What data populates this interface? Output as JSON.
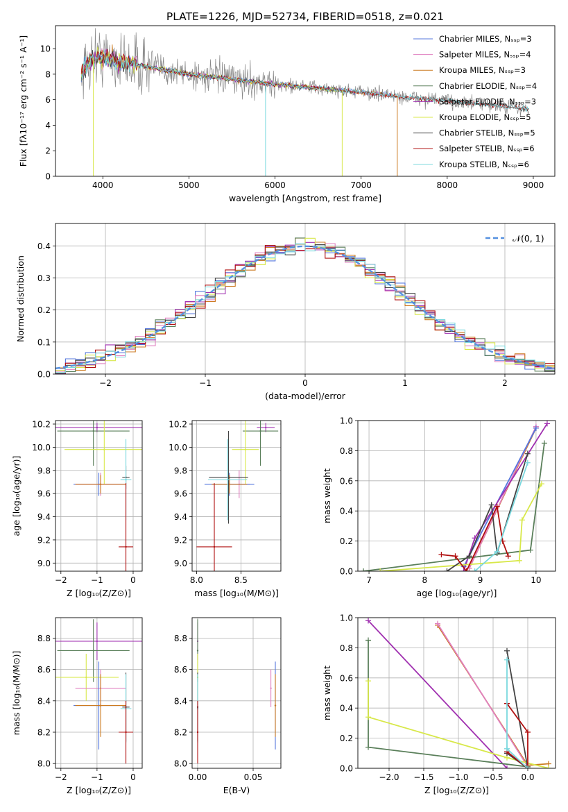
{
  "figure_title": "PLATE=1226, MJD=52734, FIBERID=0518, z=0.021",
  "colors": {
    "Chabrier MILES": "#5577dd",
    "Salpeter MILES": "#e080c0",
    "Kroupa MILES": "#cc7a20",
    "Chabrier ELODIE": "#5a7f5a",
    "Salpeter ELODIE": "#a030b0",
    "Kroupa ELODIE": "#d8e84a",
    "Chabrier STELIB": "#444444",
    "Salpeter STELIB": "#b01010",
    "Kroupa STELIB": "#7ad8de",
    "data": "#888888",
    "normal": "#5590e0"
  },
  "chart_data": [
    {
      "id": "spectrum",
      "type": "line",
      "title": "",
      "xlabel": "wavelength [Angstrom, rest frame]",
      "ylabel": "Flux [fλ10⁻¹⁷ erg cm⁻² s⁻¹ A⁻¹]",
      "xlim": [
        3450,
        9250
      ],
      "ylim": [
        0,
        11.8
      ],
      "xticks": [
        4000,
        5000,
        6000,
        7000,
        8000,
        9000
      ],
      "yticks": [
        0,
        2,
        4,
        6,
        8,
        10
      ],
      "legend_position": "top-right",
      "grid": false,
      "continuum": [
        [
          3750,
          8.2
        ],
        [
          3900,
          9.4
        ],
        [
          4000,
          9.3
        ],
        [
          4200,
          9.0
        ],
        [
          4500,
          8.6
        ],
        [
          5000,
          8.0
        ],
        [
          5500,
          7.6
        ],
        [
          6000,
          7.2
        ],
        [
          6500,
          6.9
        ],
        [
          7000,
          6.6
        ],
        [
          7500,
          6.2
        ],
        [
          8000,
          5.9
        ],
        [
          8500,
          5.6
        ],
        [
          9000,
          5.2
        ]
      ],
      "data_range": [
        3750,
        8950
      ],
      "series": [
        {
          "name": "Chabrier MILES, N_SSP=3",
          "model": "Chabrier MILES",
          "range": [
            3750,
            7420
          ]
        },
        {
          "name": "Salpeter MILES, N_SSP=4",
          "model": "Salpeter MILES",
          "range": [
            3750,
            7420
          ]
        },
        {
          "name": "Kroupa MILES, N_SSP=3",
          "model": "Kroupa MILES",
          "range": [
            3750,
            7420
          ]
        },
        {
          "name": "Chabrier ELODIE, N_SSP=4",
          "model": "Chabrier ELODIE",
          "range": [
            3750,
            6780
          ]
        },
        {
          "name": "Salpeter ELODIE, N_SSP=3",
          "model": "Salpeter ELODIE",
          "range": [
            3750,
            6780
          ]
        },
        {
          "name": "Kroupa ELODIE, N_SSP=5",
          "model": "Kroupa ELODIE",
          "range": [
            3750,
            6780
          ]
        },
        {
          "name": "Chabrier STELIB, N_SSP=5",
          "model": "Chabrier STELIB",
          "range": [
            3750,
            8950
          ]
        },
        {
          "name": "Salpeter STELIB, N_SSP=6",
          "model": "Salpeter STELIB",
          "range": [
            3750,
            8950
          ]
        },
        {
          "name": "Kroupa STELIB, N_SSP=6",
          "model": "Kroupa STELIB",
          "range": [
            3750,
            8950
          ]
        }
      ],
      "drops": [
        {
          "x": 3890,
          "model": "Kroupa ELODIE"
        },
        {
          "x": 5890,
          "model": "Kroupa STELIB"
        },
        {
          "x": 6780,
          "model": "Kroupa ELODIE"
        },
        {
          "x": 7420,
          "model": "Kroupa MILES"
        }
      ]
    },
    {
      "id": "residual_hist",
      "type": "line",
      "title": "",
      "xlabel": "(data-model)/error",
      "ylabel": "Normed distribution",
      "xlim": [
        -2.5,
        2.5
      ],
      "ylim": [
        0,
        0.47
      ],
      "xticks": [
        -2,
        -1,
        0,
        1,
        2
      ],
      "yticks": [
        0.0,
        0.1,
        0.2,
        0.3,
        0.4
      ],
      "grid": true,
      "legend_position": "top-right",
      "bin_width": 0.1,
      "normal_label": "𝒩(0, 1)"
    },
    {
      "id": "age_vs_Z",
      "type": "scatter",
      "title": "",
      "xlabel": "Z [log₁₀(Z/Z⊙)]",
      "ylabel": "age  [log₁₀(age/yr)]",
      "xlim": [
        -2.15,
        0.25
      ],
      "ylim": [
        8.93,
        10.23
      ],
      "xticks": [
        -2,
        -1,
        0
      ],
      "yticks": [
        9.0,
        9.2,
        9.4,
        9.6,
        9.8,
        10.0,
        10.2
      ],
      "grid": true,
      "points": [
        {
          "model": "Salpeter ELODIE",
          "x": -1.0,
          "xerr": 1.3,
          "y": 10.17,
          "yerr": 0.04
        },
        {
          "model": "Chabrier ELODIE",
          "x": -1.1,
          "xerr": 1.0,
          "y": 10.14,
          "yerr": 0.3
        },
        {
          "model": "Kroupa ELODIE",
          "x": -0.8,
          "xerr": 1.1,
          "y": 9.98,
          "yerr": 0.3
        },
        {
          "model": "Chabrier MILES",
          "x": -0.95,
          "xerr": 0.7,
          "y": 9.68,
          "yerr": 0.1
        },
        {
          "model": "Salpeter MILES",
          "x": -0.9,
          "xerr": 0.7,
          "y": 9.68,
          "yerr": 0.1
        },
        {
          "model": "Kroupa MILES",
          "x": -0.9,
          "xerr": 0.7,
          "y": 9.68,
          "yerr": 0.08
        },
        {
          "model": "Chabrier STELIB",
          "x": -0.2,
          "xerr": 0.1,
          "y": 9.74,
          "yerr": 0.1
        },
        {
          "model": "Kroupa STELIB",
          "x": -0.2,
          "xerr": 0.15,
          "y": 9.72,
          "yerr": 0.35
        },
        {
          "model": "Salpeter STELIB",
          "x": -0.2,
          "xerr": 0.2,
          "y": 9.14,
          "yerr": 0.55
        }
      ]
    },
    {
      "id": "age_vs_mass",
      "type": "scatter",
      "title": "",
      "xlabel": "mass [log₁₀(M/M⊙)]",
      "ylabel": "",
      "xlim": [
        7.95,
        8.95
      ],
      "ylim": [
        8.93,
        10.23
      ],
      "xticks": [
        8.0,
        8.5
      ],
      "yticks": [
        9.0,
        9.2,
        9.4,
        9.6,
        9.8,
        10.0,
        10.2
      ],
      "grid": true,
      "points": [
        {
          "model": "Salpeter ELODIE",
          "x": 8.78,
          "xerr": 0.1,
          "y": 10.17,
          "yerr": 0.04
        },
        {
          "model": "Chabrier ELODIE",
          "x": 8.72,
          "xerr": 0.2,
          "y": 10.14,
          "yerr": 0.3
        },
        {
          "model": "Kroupa ELODIE",
          "x": 8.55,
          "xerr": 0.15,
          "y": 9.98,
          "yerr": 0.3
        },
        {
          "model": "Salpeter MILES",
          "x": 8.48,
          "xerr": 0.12,
          "y": 9.68,
          "yerr": 0.12
        },
        {
          "model": "Chabrier MILES",
          "x": 8.37,
          "xerr": 0.28,
          "y": 9.68,
          "yerr": 0.1
        },
        {
          "model": "Kroupa MILES",
          "x": 8.37,
          "xerr": 0.2,
          "y": 9.68,
          "yerr": 0.08
        },
        {
          "model": "Chabrier STELIB",
          "x": 8.36,
          "xerr": 0.22,
          "y": 9.74,
          "yerr": 0.4
        },
        {
          "model": "Kroupa STELIB",
          "x": 8.35,
          "xerr": 0.22,
          "y": 9.72,
          "yerr": 0.35
        },
        {
          "model": "Salpeter STELIB",
          "x": 8.2,
          "xerr": 0.2,
          "y": 9.14,
          "yerr": 0.55
        }
      ]
    },
    {
      "id": "mass_vs_Z",
      "type": "scatter",
      "title": "",
      "xlabel": "Z [log₁₀(Z/Z⊙)]",
      "ylabel": "mass [log₁₀(M/M⊙)]",
      "xlim": [
        -2.15,
        0.25
      ],
      "ylim": [
        7.97,
        8.93
      ],
      "xticks": [
        -2,
        -1,
        0
      ],
      "yticks": [
        8.0,
        8.2,
        8.4,
        8.6,
        8.8
      ],
      "grid": true,
      "points": [
        {
          "model": "Salpeter ELODIE",
          "x": -1.0,
          "xerr": 1.3,
          "y": 8.78,
          "yerr": 0.12
        },
        {
          "model": "Chabrier ELODIE",
          "x": -1.1,
          "xerr": 1.0,
          "y": 8.72,
          "yerr": 0.2
        },
        {
          "model": "Kroupa ELODIE",
          "x": -1.3,
          "xerr": 0.9,
          "y": 8.55,
          "yerr": 0.15
        },
        {
          "model": "Salpeter MILES",
          "x": -0.9,
          "xerr": 0.7,
          "y": 8.48,
          "yerr": 0.12
        },
        {
          "model": "Chabrier MILES",
          "x": -0.95,
          "xerr": 0.7,
          "y": 8.37,
          "yerr": 0.28
        },
        {
          "model": "Kroupa MILES",
          "x": -0.9,
          "xerr": 0.7,
          "y": 8.37,
          "yerr": 0.2
        },
        {
          "model": "Chabrier STELIB",
          "x": -0.2,
          "xerr": 0.1,
          "y": 8.36,
          "yerr": 0.22
        },
        {
          "model": "Kroupa STELIB",
          "x": -0.2,
          "xerr": 0.15,
          "y": 8.35,
          "yerr": 0.22
        },
        {
          "model": "Salpeter STELIB",
          "x": -0.2,
          "xerr": 0.2,
          "y": 8.2,
          "yerr": 0.2
        }
      ]
    },
    {
      "id": "mass_vs_ebv",
      "type": "scatter",
      "title": "",
      "xlabel": "E(B-V)",
      "ylabel": "",
      "xlim": [
        -0.005,
        0.075
      ],
      "ylim": [
        7.97,
        8.93
      ],
      "xticks": [
        0.0,
        0.05
      ],
      "yticks": [
        8.0,
        8.2,
        8.4,
        8.6,
        8.8
      ],
      "grid": true,
      "points": [
        {
          "model": "Salpeter ELODIE",
          "x": 0.0,
          "y": 8.78,
          "yerr": 0.12
        },
        {
          "model": "Chabrier ELODIE",
          "x": 0.0,
          "y": 8.72,
          "yerr": 0.2
        },
        {
          "model": "Kroupa ELODIE",
          "x": 0.0,
          "y": 8.55,
          "yerr": 0.15
        },
        {
          "model": "Chabrier STELIB",
          "x": 0.0,
          "y": 8.36,
          "yerr": 0.22
        },
        {
          "model": "Kroupa STELIB",
          "x": 0.0,
          "y": 8.35,
          "yerr": 0.22
        },
        {
          "model": "Salpeter STELIB",
          "x": 0.0,
          "y": 8.2,
          "yerr": 0.2
        },
        {
          "model": "Salpeter MILES",
          "x": 0.066,
          "y": 8.48,
          "yerr": 0.12
        },
        {
          "model": "Chabrier MILES",
          "x": 0.07,
          "y": 8.37,
          "yerr": 0.28
        },
        {
          "model": "Kroupa MILES",
          "x": 0.07,
          "y": 8.37,
          "yerr": 0.2
        }
      ]
    },
    {
      "id": "weight_vs_age",
      "type": "line",
      "title": "",
      "xlabel": "age  [log₁₀(age/yr)]",
      "ylabel": "mass weight",
      "xlim": [
        6.8,
        10.35
      ],
      "ylim": [
        0,
        1.0
      ],
      "xticks": [
        7,
        8,
        9,
        10
      ],
      "yticks": [
        0.0,
        0.2,
        0.4,
        0.6,
        0.8,
        1.0
      ],
      "grid": true,
      "series": [
        {
          "model": "Kroupa MILES",
          "points": [
            [
              8.8,
              0.02
            ],
            [
              10.0,
              0.95
            ]
          ]
        },
        {
          "model": "Salpeter MILES",
          "points": [
            [
              8.8,
              0.02
            ],
            [
              10.0,
              0.96
            ]
          ]
        },
        {
          "model": "Chabrier MILES",
          "points": [
            [
              8.7,
              0.03
            ],
            [
              10.0,
              0.95
            ]
          ]
        },
        {
          "model": "Salpeter ELODIE",
          "points": [
            [
              8.7,
              0.0
            ],
            [
              8.9,
              0.22
            ],
            [
              10.2,
              0.98
            ]
          ]
        },
        {
          "model": "Chabrier ELODIE",
          "points": [
            [
              6.9,
              0.0
            ],
            [
              9.9,
              0.14
            ],
            [
              10.15,
              0.85
            ]
          ]
        },
        {
          "model": "Kroupa ELODIE",
          "points": [
            [
              7.2,
              0.0
            ],
            [
              9.7,
              0.07
            ],
            [
              9.75,
              0.34
            ],
            [
              10.1,
              0.58
            ]
          ]
        },
        {
          "model": "Chabrier STELIB",
          "points": [
            [
              8.4,
              0.0
            ],
            [
              8.8,
              0.1
            ],
            [
              9.2,
              0.44
            ],
            [
              9.3,
              0.12
            ],
            [
              9.85,
              0.78
            ]
          ]
        },
        {
          "model": "Salpeter STELIB",
          "points": [
            [
              8.3,
              0.11
            ],
            [
              8.55,
              0.1
            ],
            [
              8.75,
              0.0
            ],
            [
              9.3,
              0.43
            ],
            [
              9.4,
              0.2
            ],
            [
              9.5,
              0.1
            ]
          ]
        },
        {
          "model": "Kroupa STELIB",
          "points": [
            [
              8.9,
              0.0
            ],
            [
              9.3,
              0.13
            ],
            [
              9.85,
              0.72
            ]
          ]
        }
      ]
    },
    {
      "id": "weight_vs_Z",
      "type": "line",
      "title": "",
      "xlabel": "Z [log₁₀(Z/Z⊙)]",
      "ylabel": "mass weight",
      "xlim": [
        -2.45,
        0.4
      ],
      "ylim": [
        0,
        1.0
      ],
      "xticks": [
        -2.0,
        -1.5,
        -1.0,
        -0.5,
        0.0
      ],
      "yticks": [
        0.0,
        0.2,
        0.4,
        0.6,
        0.8,
        1.0
      ],
      "grid": true,
      "series": [
        {
          "model": "Salpeter ELODIE",
          "points": [
            [
              -2.3,
              0.98
            ],
            [
              -0.3,
              0.0
            ]
          ]
        },
        {
          "model": "Kroupa MILES",
          "points": [
            [
              -1.3,
              0.95
            ],
            [
              0.0,
              0.02
            ],
            [
              0.3,
              0.03
            ]
          ]
        },
        {
          "model": "Salpeter MILES",
          "points": [
            [
              -1.3,
              0.96
            ],
            [
              0.0,
              0.01
            ]
          ]
        },
        {
          "model": "Chabrier ELODIE",
          "points": [
            [
              -2.3,
              0.85
            ],
            [
              -2.3,
              0.14
            ],
            [
              0.0,
              0.01
            ]
          ]
        },
        {
          "model": "Kroupa ELODIE",
          "points": [
            [
              -2.3,
              0.58
            ],
            [
              -2.3,
              0.34
            ],
            [
              -0.3,
              0.07
            ],
            [
              0.3,
              0.0
            ]
          ]
        },
        {
          "model": "Chabrier STELIB",
          "points": [
            [
              -0.3,
              0.78
            ],
            [
              0.0,
              0.0
            ],
            [
              -0.3,
              0.1
            ]
          ]
        },
        {
          "model": "Salpeter STELIB",
          "points": [
            [
              -0.3,
              0.43
            ],
            [
              0.0,
              0.24
            ],
            [
              0.0,
              0.0
            ],
            [
              -0.3,
              0.11
            ]
          ]
        },
        {
          "model": "Kroupa STELIB",
          "points": [
            [
              -0.3,
              0.72
            ],
            [
              -0.3,
              0.13
            ],
            [
              0.0,
              0.0
            ]
          ]
        }
      ]
    }
  ]
}
